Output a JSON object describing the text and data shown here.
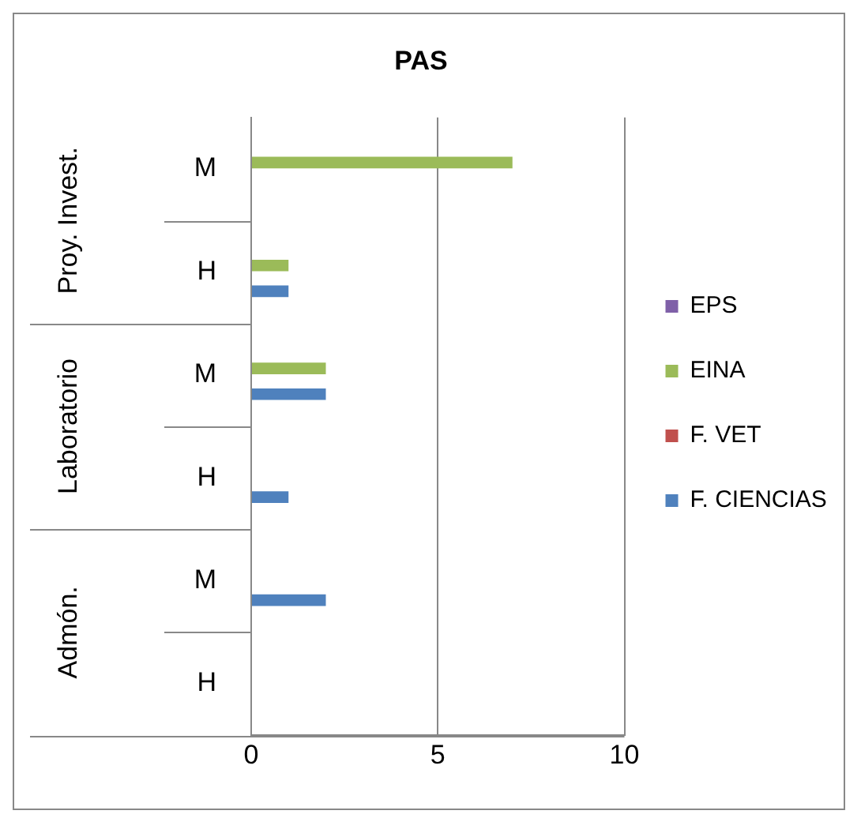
{
  "chart_data": {
    "type": "bar",
    "title": "PAS",
    "orientation": "horizontal",
    "categories": [
      "M",
      "H",
      "M",
      "H",
      "M",
      "H"
    ],
    "annotations": [
      "Proy. Invest.",
      "Laboratorio",
      "Admón."
    ],
    "series": [
      {
        "name": "EPS",
        "color": "#7f60a8",
        "values": [
          null,
          null,
          null,
          null,
          null,
          null
        ]
      },
      {
        "name": "EINA",
        "color": "#9bbb59",
        "values": [
          7,
          1,
          2,
          null,
          null,
          null
        ]
      },
      {
        "name": "F. VET",
        "color": "#c0504d",
        "values": [
          null,
          null,
          null,
          null,
          null,
          null
        ]
      },
      {
        "name": "F. CIENCIAS",
        "color": "#4f81bd",
        "values": [
          null,
          1,
          2,
          1,
          2,
          null
        ]
      }
    ],
    "xlim": [
      0,
      10
    ],
    "xticks": [
      0,
      5,
      10
    ],
    "grid": "x",
    "legend": "right"
  }
}
